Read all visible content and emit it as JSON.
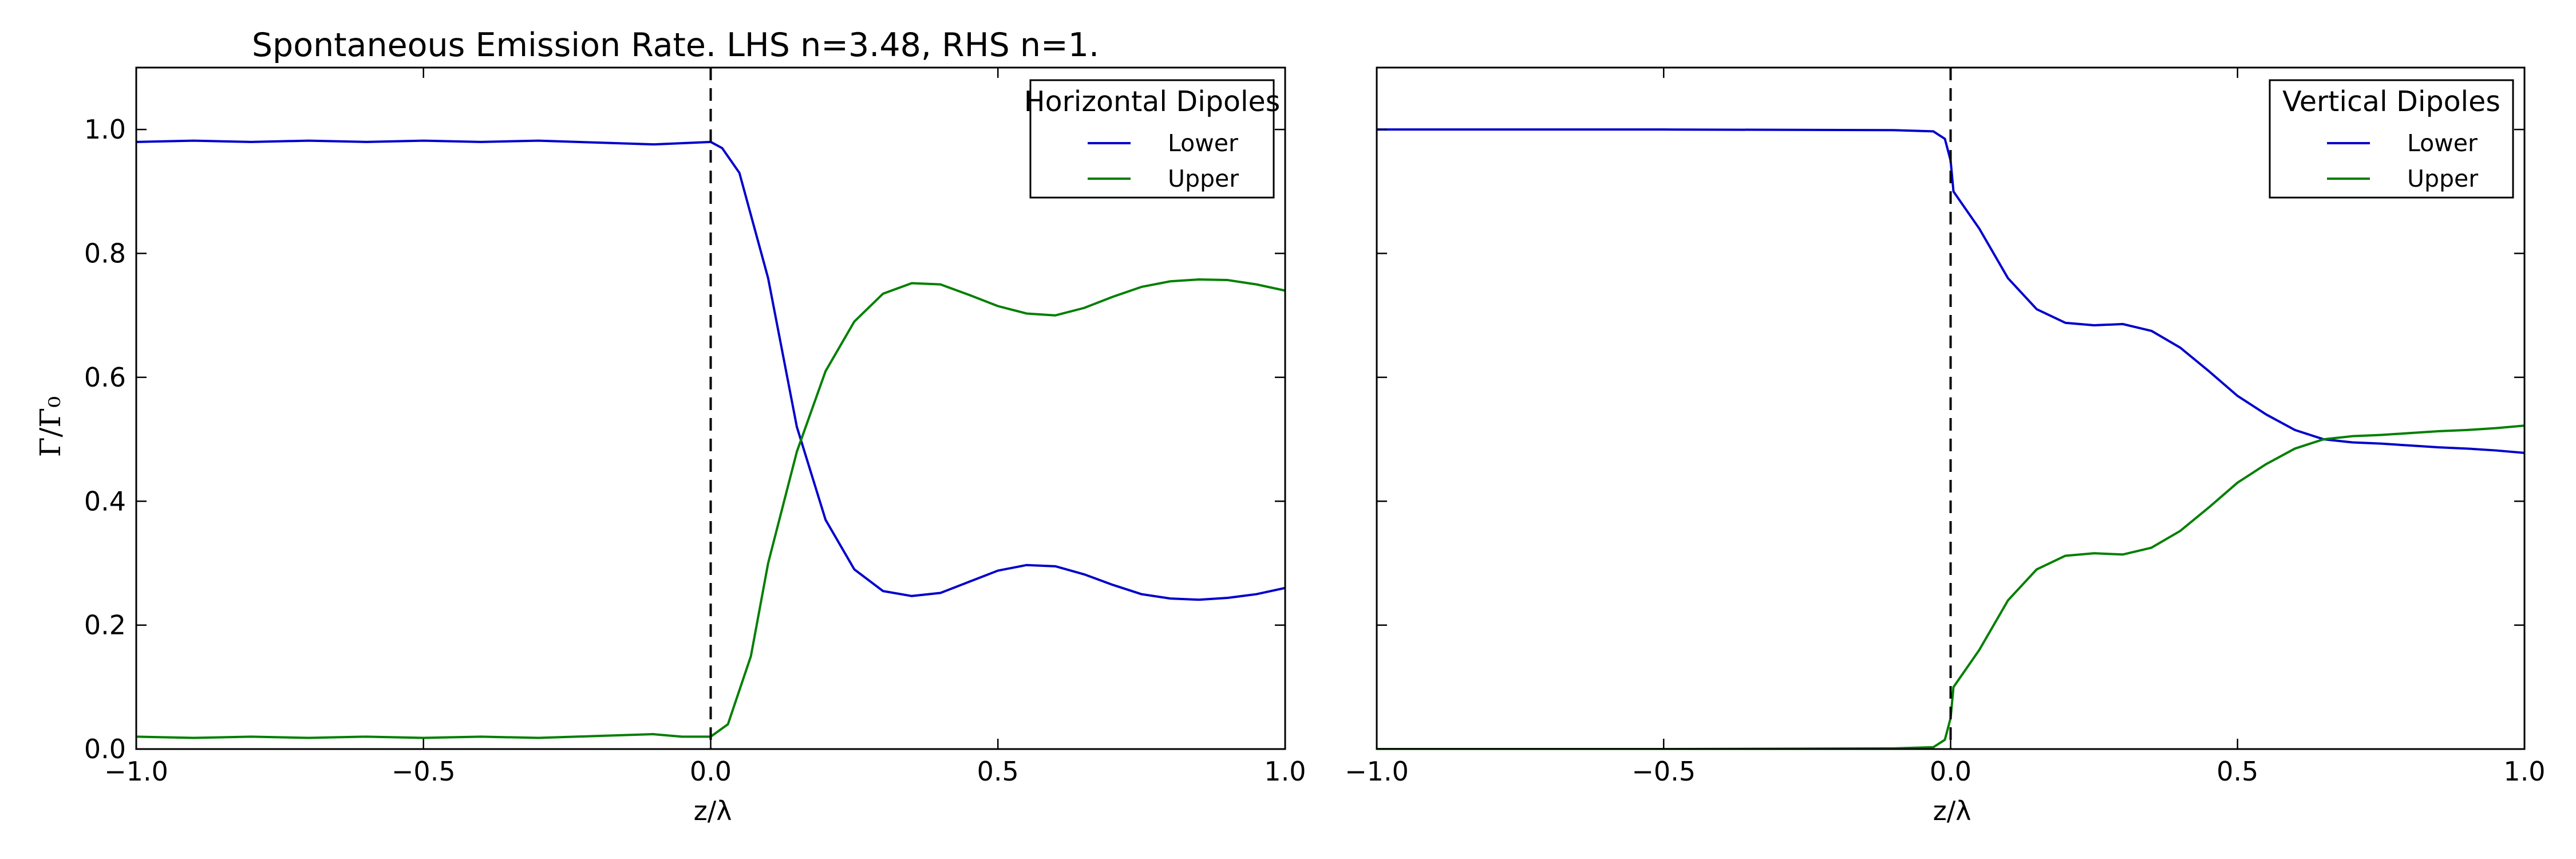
{
  "chart_data": [
    {
      "type": "line",
      "title": "Spontaneous Emission Rate. LHS n=3.48, RHS n=1.",
      "xlabel": "z/λ",
      "ylabel": "Γ/Γ₀",
      "xlim": [
        -1.0,
        1.0
      ],
      "ylim": [
        0.0,
        1.1
      ],
      "xticks": [
        "−1.0",
        "−0.5",
        "0.0",
        "0.5",
        "1.0"
      ],
      "yticks": [
        "0.0",
        "0.2",
        "0.4",
        "0.6",
        "0.8",
        "1.0"
      ],
      "vline_x": 0.0,
      "legend": {
        "title": "Horizontal Dipoles",
        "placement": "top-right"
      },
      "grid": false,
      "series": [
        {
          "name": "Lower",
          "color": "#0000cc",
          "x": [
            -1.0,
            -0.9,
            -0.8,
            -0.7,
            -0.6,
            -0.5,
            -0.4,
            -0.3,
            -0.2,
            -0.1,
            0.0,
            0.02,
            0.05,
            0.1,
            0.15,
            0.2,
            0.25,
            0.3,
            0.35,
            0.4,
            0.45,
            0.5,
            0.55,
            0.6,
            0.65,
            0.7,
            0.75,
            0.8,
            0.85,
            0.9,
            0.95,
            1.0
          ],
          "y": [
            0.98,
            0.982,
            0.98,
            0.982,
            0.98,
            0.982,
            0.98,
            0.982,
            0.979,
            0.976,
            0.98,
            0.97,
            0.93,
            0.76,
            0.52,
            0.37,
            0.29,
            0.255,
            0.247,
            0.252,
            0.27,
            0.288,
            0.297,
            0.295,
            0.282,
            0.265,
            0.25,
            0.243,
            0.241,
            0.244,
            0.25,
            0.26
          ]
        },
        {
          "name": "Upper",
          "color": "#007f00",
          "x": [
            -1.0,
            -0.9,
            -0.8,
            -0.7,
            -0.6,
            -0.5,
            -0.4,
            -0.3,
            -0.2,
            -0.1,
            -0.05,
            0.0,
            0.03,
            0.07,
            0.1,
            0.15,
            0.2,
            0.25,
            0.3,
            0.35,
            0.4,
            0.45,
            0.5,
            0.55,
            0.6,
            0.65,
            0.7,
            0.75,
            0.8,
            0.85,
            0.9,
            0.95,
            1.0
          ],
          "y": [
            0.02,
            0.018,
            0.02,
            0.018,
            0.02,
            0.018,
            0.02,
            0.018,
            0.021,
            0.024,
            0.02,
            0.02,
            0.04,
            0.15,
            0.3,
            0.48,
            0.61,
            0.69,
            0.735,
            0.752,
            0.75,
            0.733,
            0.715,
            0.703,
            0.7,
            0.712,
            0.73,
            0.746,
            0.755,
            0.758,
            0.757,
            0.75,
            0.74
          ]
        }
      ]
    },
    {
      "type": "line",
      "title": "",
      "xlabel": "z/λ",
      "ylabel": "",
      "xlim": [
        -1.0,
        1.0
      ],
      "ylim": [
        0.0,
        1.1
      ],
      "xticks": [
        "−1.0",
        "−0.5",
        "0.0",
        "0.5",
        "1.0"
      ],
      "yticks": [],
      "vline_x": 0.0,
      "legend": {
        "title": "Vertical Dipoles",
        "placement": "top-right"
      },
      "grid": false,
      "series": [
        {
          "name": "Lower",
          "color": "#0000cc",
          "x": [
            -1.0,
            -0.5,
            -0.1,
            -0.03,
            -0.01,
            0.0,
            0.005,
            0.02,
            0.05,
            0.1,
            0.15,
            0.2,
            0.25,
            0.3,
            0.35,
            0.4,
            0.45,
            0.5,
            0.55,
            0.6,
            0.65,
            0.7,
            0.75,
            0.8,
            0.85,
            0.9,
            0.95,
            1.0
          ],
          "y": [
            1.0,
            1.0,
            0.999,
            0.997,
            0.985,
            0.95,
            0.9,
            0.88,
            0.84,
            0.76,
            0.71,
            0.688,
            0.684,
            0.686,
            0.675,
            0.648,
            0.61,
            0.57,
            0.54,
            0.515,
            0.5,
            0.495,
            0.493,
            0.49,
            0.487,
            0.485,
            0.482,
            0.478
          ]
        },
        {
          "name": "Upper",
          "color": "#007f00",
          "x": [
            -1.0,
            -0.5,
            -0.1,
            -0.03,
            -0.01,
            0.0,
            0.005,
            0.02,
            0.05,
            0.1,
            0.15,
            0.2,
            0.25,
            0.3,
            0.35,
            0.4,
            0.45,
            0.5,
            0.55,
            0.6,
            0.65,
            0.7,
            0.75,
            0.8,
            0.85,
            0.9,
            0.95,
            1.0
          ],
          "y": [
            0.0,
            0.0,
            0.001,
            0.003,
            0.015,
            0.05,
            0.1,
            0.12,
            0.16,
            0.24,
            0.29,
            0.312,
            0.316,
            0.314,
            0.325,
            0.352,
            0.39,
            0.43,
            0.46,
            0.485,
            0.5,
            0.505,
            0.507,
            0.51,
            0.513,
            0.515,
            0.518,
            0.522
          ]
        }
      ]
    }
  ]
}
